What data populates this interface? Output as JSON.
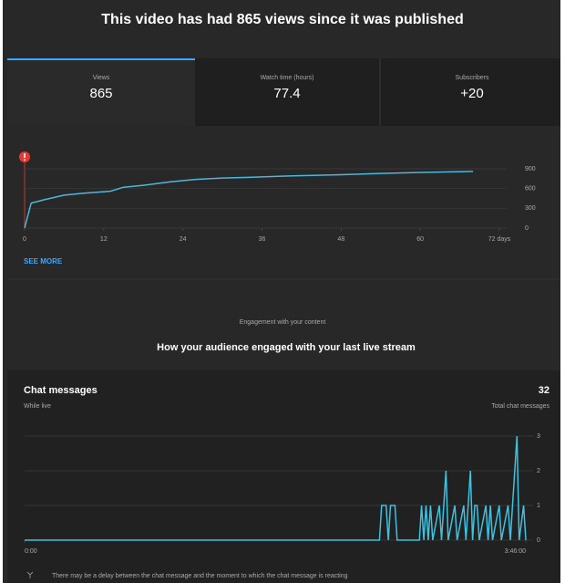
{
  "header": {
    "title": "This video has had 865 views since it was published"
  },
  "tabs": [
    {
      "label": "Views",
      "value": 865
    },
    {
      "label": "Watch time (hours)",
      "value": 77.4
    },
    {
      "label": "Subscribers",
      "value": "+20"
    }
  ],
  "see_more": "SEE MORE",
  "engagement": {
    "kicker": "Engagement with your content",
    "title": "How your audience engaged with your last live stream"
  },
  "chat": {
    "title": "Chat messages",
    "total": 32,
    "subtitle": "While live",
    "total_label": "Total chat messages",
    "note": "There may be a delay between the chat message and the moment to which the chat message is reacting"
  },
  "chart_data": [
    {
      "type": "line",
      "color": "#4fb6dc",
      "grid": true,
      "x": [
        0,
        1,
        3,
        6,
        9,
        13,
        15,
        18,
        22,
        26,
        30,
        34,
        40,
        48,
        54,
        60,
        68
      ],
      "values": [
        0,
        380,
        430,
        500,
        530,
        560,
        620,
        650,
        700,
        740,
        760,
        770,
        790,
        810,
        830,
        845,
        860
      ],
      "xlim": [
        0,
        72
      ],
      "xticks": [
        0,
        12,
        24,
        36,
        48,
        60,
        {
          "value": 72,
          "label": "72 days"
        }
      ],
      "ylim": [
        0,
        900
      ],
      "yticks": [
        0,
        300,
        600,
        900
      ]
    },
    {
      "type": "line",
      "color": "#3fc1e0",
      "grid": true,
      "x": [
        0,
        160,
        161,
        163,
        164,
        165,
        167,
        168,
        178,
        179,
        180,
        181,
        182,
        183,
        184,
        187,
        188,
        190,
        191,
        194,
        195,
        198,
        199,
        201,
        202,
        203,
        204,
        205,
        208,
        209,
        210,
        211,
        214,
        215,
        218,
        219,
        222,
        223,
        225,
        226
      ],
      "values": [
        0,
        0,
        1,
        1,
        0,
        1,
        1,
        0,
        0,
        1,
        0,
        1,
        0,
        1,
        0,
        1,
        0,
        2,
        0,
        1,
        0,
        1,
        0,
        2,
        0,
        1,
        1,
        0,
        1,
        0,
        1,
        0,
        1,
        0,
        1,
        0,
        3,
        0,
        1,
        0
      ],
      "xlim": [
        0,
        226
      ],
      "xticks": [
        {
          "value": 0,
          "label": "0:00"
        },
        {
          "value": 226,
          "label": "3:46:00"
        }
      ],
      "ylim": [
        0,
        3
      ],
      "yticks": [
        0,
        1,
        2,
        3
      ]
    }
  ]
}
